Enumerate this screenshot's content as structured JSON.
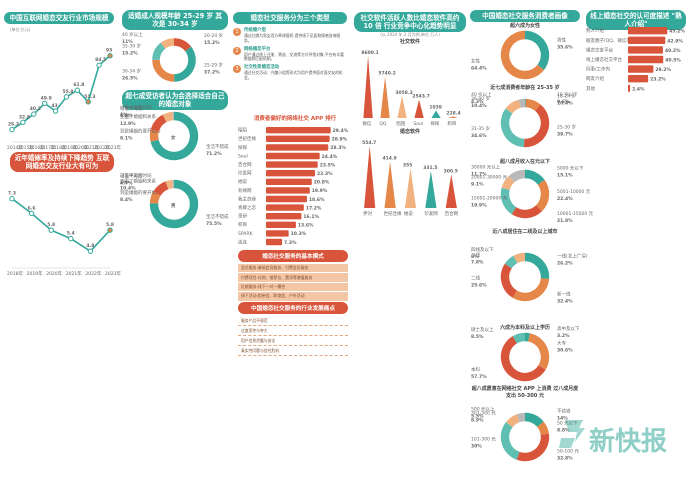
{
  "colors": {
    "teal": "#34a89a",
    "orange": "#e6874a",
    "red": "#d8553b",
    "grey": "#b9b9b9"
  },
  "market": {
    "title": "中国互联网婚恋交友行业市场规模",
    "unit": "(单位:亿元)",
    "chart_data": {
      "type": "line",
      "x": [
        "2014年",
        "2015年",
        "2016年",
        "2017年",
        "2018年",
        "2019年",
        "2020年",
        "2021年",
        "2022年",
        "2023年"
      ],
      "values": [
        26.2,
        32.8,
        40.2,
        49.9,
        43.0,
        55.8,
        61.8,
        51.3,
        84.5,
        93.0
      ],
      "ylabel": "亿元"
    }
  },
  "divorce": {
    "title": "近年婚嫁率及持续下降趋势 互联网婚恋交友行业大有可为",
    "chart_data": {
      "type": "line",
      "x": [
        "2018年",
        "2019年",
        "2020年",
        "2021年",
        "2022年",
        "2023年"
      ],
      "values": [
        7.3,
        6.6,
        5.8,
        5.4,
        4.8,
        5.8
      ]
    }
  },
  "age": {
    "title": "适婚成人规模年龄 25-29 岁 其次是 30-34 岁",
    "chart_data": {
      "type": "pie",
      "series": [
        {
          "name": "20-24 岁",
          "value": 15.2
        },
        {
          "name": "25-29 岁",
          "value": 37.2
        },
        {
          "name": "30-34 岁",
          "value": 26.5
        },
        {
          "name": "35-39 岁",
          "value": 15.2
        },
        {
          "name": "40 岁以上",
          "value": 11.0
        }
      ]
    }
  },
  "attitude": {
    "title": "超七成受访者认为会选择适合自己的婚恋对象",
    "male_label": "女",
    "female_label": "男",
    "items": [
      "宝洁不错成",
      "到是婚姻的要开始的",
      "正面了婚姻和关系",
      "可能不可适",
      "过于中高的时间"
    ],
    "chart_data": [
      {
        "type": "pie",
        "name": "女",
        "values": [
          71.2,
          8.1,
          12.9,
          6.8,
          1.0
        ]
      },
      {
        "type": "pie",
        "name": "男",
        "values": [
          75.5,
          8.4,
          10.4,
          4.7,
          1.0
        ]
      }
    ]
  },
  "wechat": {
    "title": "婚恋社交服务分为三个类型",
    "steps": [
      {
        "no": "1",
        "head": "传统婚介型",
        "text": "通过红娘为男女双方牵线搭桥,提供线下见面和情感咨询服务。"
      },
      {
        "no": "2",
        "head": "网络婚恋平台",
        "text": "用户通过线上注册、筛选、交流等方式寻找对象,平台有丰富数据和匹配机制。"
      },
      {
        "no": "3",
        "head": "社交性质婚恋活动",
        "text": "通过社交活动、兴趣小组等形式为用户提供面对面交友的机会。"
      }
    ]
  },
  "apps": {
    "title": "消费者偏好的网络社交 APP 排行",
    "chart_data": {
      "type": "bar",
      "categories": [
        "陌陌",
        "世纪佳缘",
        "探探",
        "Soul",
        "百合网",
        "珍爱网",
        "她说",
        "有缘网",
        "我主良缘",
        "青藤之恋",
        "觅伊",
        "积目",
        "SPARK",
        "连连"
      ],
      "values": [
        29.4,
        28.9,
        28.3,
        24.4,
        23.5,
        22.3,
        20.8,
        19.9,
        18.6,
        17.2,
        16.1,
        13.6,
        10.3,
        7.3
      ]
    }
  },
  "modes": {
    "title": "婚恋社交服务的基本模式",
    "items": [
      "会员服务:基础会员服务、付费会员服务",
      "付费项目:礼物、推荐位、置顶等增值服务",
      "红娘服务:线下一对一撮合",
      "线下活动:相亲会、联谊会、户外活动"
    ]
  },
  "hot": {
    "title": "中国婚恋社交服务的行业发展痛点",
    "items": [
      "服务产品不规范",
      "过度宣传与夸大",
      "用户信息泄露与安全",
      "真实性问题与信任危机"
    ]
  },
  "top10": {
    "title": "社交软件活跃人数比婚恋软件高约 10 倍 行业竞争中心化趋势明显",
    "note": "(以 2024 年 2 月为例,单位:万人)",
    "chart_data": [
      {
        "type": "bar",
        "title": "社交软件",
        "categories": [
          "微信",
          "QQ",
          "陌陌",
          "Soul",
          "探探",
          "积目"
        ],
        "values": [
          8600.1,
          5740.2,
          3058.3,
          2543.7,
          1039.0,
          228.4
        ]
      },
      {
        "type": "bar",
        "title": "婚恋软件",
        "categories": [
          "伊对",
          "世纪佳缘",
          "她说",
          "珍爱网",
          "百合网"
        ],
        "values": [
          554.7,
          414.9,
          355.0,
          331.5,
          300.5
        ]
      }
    ]
  },
  "users": {
    "title": "中国婚恋社交服务消费者画像",
    "gender": {
      "title": "超六成为女性",
      "chart_data": {
        "type": "pie",
        "series": [
          {
            "name": "男性",
            "value": 35.6
          },
          {
            "name": "女性",
            "value": 64.4
          }
        ]
      }
    },
    "age": {
      "title": "近七成消费者年龄在 25-35 岁",
      "chart_data": {
        "type": "pie",
        "series": [
          {
            "name": "18 岁以下",
            "value": 0.6
          },
          {
            "name": "18-24 岁",
            "value": 10.4
          },
          {
            "name": "25-30 岁",
            "value": 39.7
          },
          {
            "name": "31-35 岁",
            "value": 34.6
          },
          {
            "name": "36-40 岁",
            "value": 10.4
          },
          {
            "name": "40 岁以上",
            "value": 4.3
          }
        ]
      }
    },
    "income": {
      "title": "超八成月收入在元以下",
      "chart_data": {
        "type": "pie",
        "series": [
          {
            "name": "5000 元以下",
            "value": 15.1
          },
          {
            "name": "5001-10000 元",
            "value": 22.4
          },
          {
            "name": "10001-15000 元",
            "value": 21.8
          },
          {
            "name": "15001-20000 元",
            "value": 19.9
          },
          {
            "name": "20001-30000 元",
            "value": 9.1
          },
          {
            "name": "30000 元以上",
            "value": 11.7
          }
        ]
      }
    },
    "city": {
      "title": "近八成居住在二线及以上城市",
      "chart_data": {
        "type": "pie",
        "series": [
          {
            "name": "一线(北上广深)",
            "value": 26.2
          },
          {
            "name": "新一线",
            "value": 32.4
          },
          {
            "name": "二线",
            "value": 25.6
          },
          {
            "name": "三线",
            "value": 7.8
          },
          {
            "name": "四线及以下",
            "value": 8.0
          }
        ]
      }
    },
    "edu": {
      "title": "六成为本科及以上学历",
      "chart_data": {
        "type": "pie",
        "series": [
          {
            "name": "高中及以下",
            "value": 3.2
          },
          {
            "name": "大专",
            "value": 30.6
          },
          {
            "name": "本科",
            "value": 57.7
          },
          {
            "name": "硕士及以上",
            "value": 8.5
          }
        ]
      }
    },
    "spend": {
      "title": "超八成愿意在网络社交 APP 上消费 过八成月度支出 50-300 元",
      "chart_data": {
        "type": "pie",
        "series": [
          {
            "name": "不花钱",
            "value": 14.0
          },
          {
            "name": "50 元以下",
            "value": 8.8
          },
          {
            "name": "50-100 元",
            "value": 32.8
          },
          {
            "name": "101-300 元",
            "value": 30.0
          },
          {
            "name": "301-500 元",
            "value": 8.9
          },
          {
            "name": "500 元以上",
            "value": 5.5
          }
        ]
      }
    }
  },
  "online": {
    "title": "线上婚恋社交的认可度描述 \"熟人介绍\"",
    "chart_data": {
      "type": "bar",
      "categories": [
        "熟人介绍",
        "朋友圈子(QQ、微信等)",
        "婚恋交友平台",
        "线上婚恋社交平台",
        "同事/工作内",
        "网友介绍",
        "其他"
      ],
      "values": [
        45.2,
        42.9,
        40.2,
        40.5,
        29.2,
        23.2,
        2.4
      ]
    }
  },
  "brand": {
    "logo": "新快报"
  }
}
